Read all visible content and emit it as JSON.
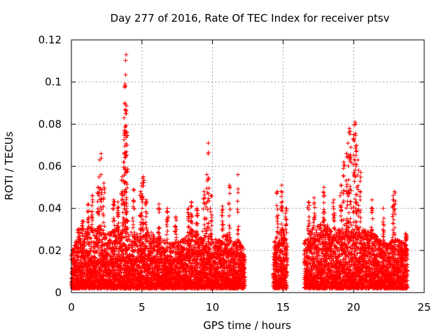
{
  "chart_data": {
    "type": "scatter",
    "title": "Day 277 of 2016, Rate Of TEC Index for receiver ptsv",
    "xlabel": "GPS time / hours",
    "ylabel": "ROTI / TECUs",
    "xlim": [
      0,
      25
    ],
    "ylim": [
      0,
      0.12
    ],
    "xticks": [
      "0",
      "5",
      "10",
      "15",
      "20",
      "25"
    ],
    "yticks": [
      "0",
      "0.02",
      "0.04",
      "0.06",
      "0.08",
      "0.1",
      "0.12"
    ],
    "grid": true,
    "marker": "plus",
    "series_color": "#ff0000",
    "series": [
      {
        "name": "ROTI",
        "segments": [
          [
            0.0,
            12.3
          ],
          [
            14.3,
            15.3
          ],
          [
            16.5,
            23.8
          ]
        ],
        "baseline_upper": [
          [
            0.0,
            0.02
          ],
          [
            0.5,
            0.028
          ],
          [
            1.0,
            0.03
          ],
          [
            1.5,
            0.032
          ],
          [
            2.0,
            0.03
          ],
          [
            2.5,
            0.028
          ],
          [
            3.0,
            0.03
          ],
          [
            3.5,
            0.032
          ],
          [
            4.0,
            0.03
          ],
          [
            4.5,
            0.028
          ],
          [
            5.0,
            0.03
          ],
          [
            5.5,
            0.03
          ],
          [
            6.0,
            0.026
          ],
          [
            6.5,
            0.026
          ],
          [
            7.0,
            0.025
          ],
          [
            7.5,
            0.024
          ],
          [
            8.0,
            0.026
          ],
          [
            8.5,
            0.03
          ],
          [
            9.0,
            0.028
          ],
          [
            9.5,
            0.03
          ],
          [
            10.0,
            0.025
          ],
          [
            10.5,
            0.026
          ],
          [
            11.0,
            0.028
          ],
          [
            11.5,
            0.025
          ],
          [
            12.0,
            0.024
          ],
          [
            12.3,
            0.02
          ],
          [
            14.3,
            0.024
          ],
          [
            14.7,
            0.03
          ],
          [
            15.0,
            0.032
          ],
          [
            15.3,
            0.024
          ],
          [
            16.5,
            0.024
          ],
          [
            17.0,
            0.03
          ],
          [
            17.5,
            0.032
          ],
          [
            18.0,
            0.035
          ],
          [
            18.5,
            0.03
          ],
          [
            19.0,
            0.03
          ],
          [
            19.5,
            0.032
          ],
          [
            20.0,
            0.03
          ],
          [
            20.5,
            0.03
          ],
          [
            21.0,
            0.03
          ],
          [
            21.5,
            0.028
          ],
          [
            22.0,
            0.024
          ],
          [
            22.5,
            0.024
          ],
          [
            23.0,
            0.026
          ],
          [
            23.5,
            0.024
          ],
          [
            23.8,
            0.022
          ]
        ],
        "spikes": [
          [
            0.5,
            0.03
          ],
          [
            0.8,
            0.034
          ],
          [
            1.2,
            0.042
          ],
          [
            1.5,
            0.046
          ],
          [
            1.9,
            0.05
          ],
          [
            2.0,
            0.063
          ],
          [
            2.1,
            0.066
          ],
          [
            2.3,
            0.052
          ],
          [
            3.0,
            0.044
          ],
          [
            3.3,
            0.043
          ],
          [
            3.6,
            0.055
          ],
          [
            3.7,
            0.062
          ],
          [
            3.75,
            0.077
          ],
          [
            3.78,
            0.09
          ],
          [
            3.8,
            0.099
          ],
          [
            3.83,
            0.098
          ],
          [
            3.88,
            0.113
          ],
          [
            3.9,
            0.085
          ],
          [
            3.95,
            0.07
          ],
          [
            4.4,
            0.049
          ],
          [
            4.9,
            0.048
          ],
          [
            5.0,
            0.052
          ],
          [
            5.1,
            0.055
          ],
          [
            5.3,
            0.044
          ],
          [
            6.2,
            0.042
          ],
          [
            6.8,
            0.04
          ],
          [
            7.4,
            0.036
          ],
          [
            8.3,
            0.04
          ],
          [
            8.5,
            0.043
          ],
          [
            8.9,
            0.04
          ],
          [
            9.4,
            0.048
          ],
          [
            9.6,
            0.056
          ],
          [
            9.7,
            0.071
          ],
          [
            9.9,
            0.046
          ],
          [
            10.7,
            0.041
          ],
          [
            11.2,
            0.051
          ],
          [
            11.8,
            0.056
          ],
          [
            14.6,
            0.048
          ],
          [
            14.9,
            0.051
          ],
          [
            15.2,
            0.04
          ],
          [
            16.8,
            0.043
          ],
          [
            17.2,
            0.045
          ],
          [
            17.9,
            0.05
          ],
          [
            18.6,
            0.044
          ],
          [
            19.1,
            0.051
          ],
          [
            19.3,
            0.062
          ],
          [
            19.5,
            0.066
          ],
          [
            19.6,
            0.071
          ],
          [
            19.7,
            0.078
          ],
          [
            19.8,
            0.069
          ],
          [
            20.0,
            0.075
          ],
          [
            20.1,
            0.081
          ],
          [
            20.15,
            0.08
          ],
          [
            20.2,
            0.07
          ],
          [
            20.3,
            0.063
          ],
          [
            20.5,
            0.057
          ],
          [
            21.3,
            0.044
          ],
          [
            22.1,
            0.04
          ],
          [
            22.8,
            0.046
          ],
          [
            22.9,
            0.048
          ],
          [
            23.7,
            0.028
          ]
        ]
      }
    ]
  }
}
